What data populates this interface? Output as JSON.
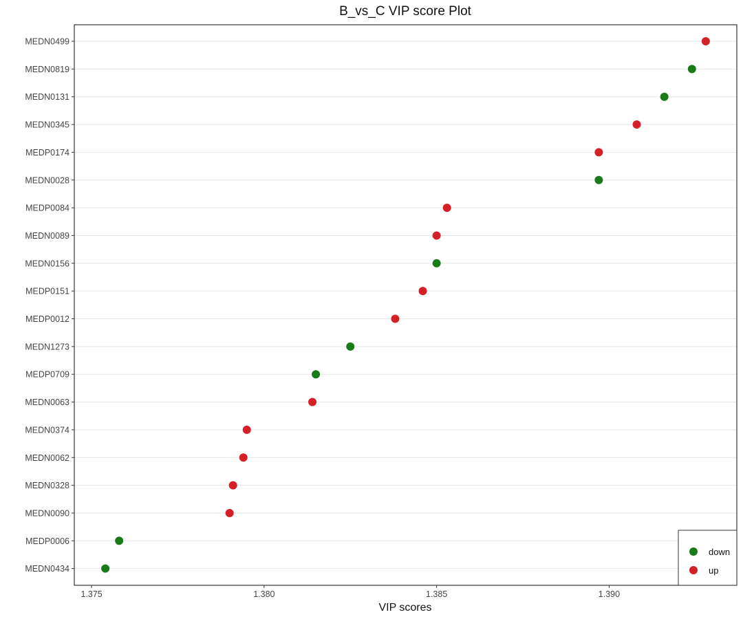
{
  "chart_data": {
    "type": "scatter",
    "title": "B_vs_C VIP score Plot",
    "xlabel": "VIP scores",
    "ylabel": "",
    "xlim": [
      1.3745,
      1.3937
    ],
    "xticks": [
      1.375,
      1.38,
      1.385,
      1.39
    ],
    "xtick_labels": [
      "1.375",
      "1.380",
      "1.385",
      "1.390"
    ],
    "grid": true,
    "legend_position": "bottom-right",
    "colors": {
      "down": "#1a7a1a",
      "up": "#d42026"
    },
    "legend": [
      {
        "key": "down",
        "label": "down"
      },
      {
        "key": "up",
        "label": "up"
      }
    ],
    "categories": [
      "MEDN0499",
      "MEDN0819",
      "MEDN0131",
      "MEDN0345",
      "MEDP0174",
      "MEDN0028",
      "MEDP0084",
      "MEDN0089",
      "MEDN0156",
      "MEDP0151",
      "MEDP0012",
      "MEDN1273",
      "MEDP0709",
      "MEDN0063",
      "MEDN0374",
      "MEDN0062",
      "MEDN0328",
      "MEDN0090",
      "MEDP0006",
      "MEDN0434"
    ],
    "points": [
      {
        "label": "MEDN0499",
        "vip": 1.3928,
        "group": "up"
      },
      {
        "label": "MEDN0819",
        "vip": 1.3924,
        "group": "down"
      },
      {
        "label": "MEDN0131",
        "vip": 1.3916,
        "group": "down"
      },
      {
        "label": "MEDN0345",
        "vip": 1.3908,
        "group": "up"
      },
      {
        "label": "MEDP0174",
        "vip": 1.3897,
        "group": "up"
      },
      {
        "label": "MEDN0028",
        "vip": 1.3897,
        "group": "down"
      },
      {
        "label": "MEDP0084",
        "vip": 1.3853,
        "group": "up"
      },
      {
        "label": "MEDN0089",
        "vip": 1.385,
        "group": "up"
      },
      {
        "label": "MEDN0156",
        "vip": 1.385,
        "group": "down"
      },
      {
        "label": "MEDP0151",
        "vip": 1.3846,
        "group": "up"
      },
      {
        "label": "MEDP0012",
        "vip": 1.3838,
        "group": "up"
      },
      {
        "label": "MEDN1273",
        "vip": 1.3825,
        "group": "down"
      },
      {
        "label": "MEDP0709",
        "vip": 1.3815,
        "group": "down"
      },
      {
        "label": "MEDN0063",
        "vip": 1.3814,
        "group": "up"
      },
      {
        "label": "MEDN0374",
        "vip": 1.3795,
        "group": "up"
      },
      {
        "label": "MEDN0062",
        "vip": 1.3794,
        "group": "up"
      },
      {
        "label": "MEDN0328",
        "vip": 1.3791,
        "group": "up"
      },
      {
        "label": "MEDN0090",
        "vip": 1.379,
        "group": "up"
      },
      {
        "label": "MEDP0006",
        "vip": 1.3758,
        "group": "down"
      },
      {
        "label": "MEDN0434",
        "vip": 1.3754,
        "group": "down"
      }
    ]
  }
}
